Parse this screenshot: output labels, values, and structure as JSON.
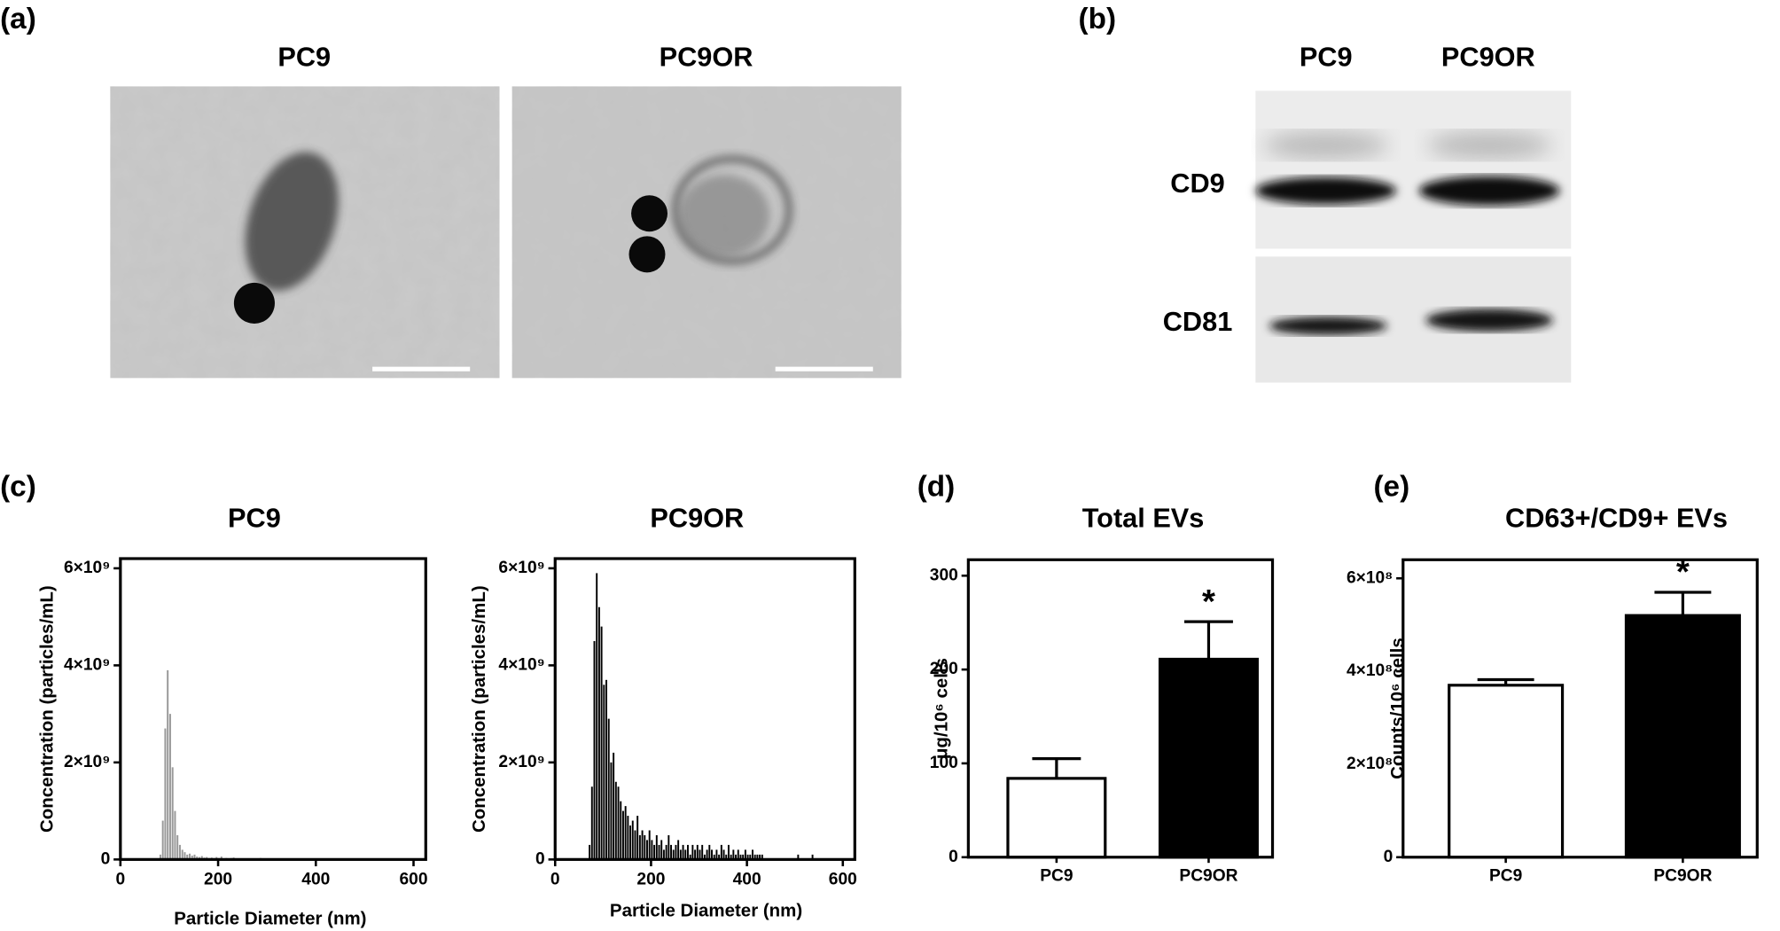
{
  "panels": {
    "a": {
      "label": "(a)",
      "titles": [
        "PC9",
        "PC9OR"
      ]
    },
    "b": {
      "label": "(b)",
      "lanes": [
        "PC9",
        "PC9OR"
      ],
      "markers": [
        "CD9",
        "CD81"
      ]
    }
  },
  "chart_data": [
    {
      "type": "histogram",
      "panel_label": "(c)",
      "title": "PC9",
      "xlabel": "Particle Diameter (nm)",
      "ylabel": "Concentration (particles/mL)",
      "color": "#999999",
      "bins": [
        80,
        85,
        90,
        95,
        100,
        105,
        110,
        115,
        120,
        125,
        130,
        135,
        140,
        145,
        150,
        155,
        160,
        165,
        170,
        175,
        180,
        185,
        190,
        195,
        200,
        205,
        210,
        215,
        220,
        225,
        230,
        235,
        240,
        245,
        250,
        255,
        260,
        265,
        270,
        275,
        280,
        285,
        290,
        295,
        300
      ],
      "values": [
        100000000.0,
        800000000.0,
        2700000000.0,
        3900000000.0,
        3000000000.0,
        1900000000.0,
        1000000000.0,
        500000000.0,
        300000000.0,
        200000000.0,
        150000000.0,
        100000000.0,
        120000000.0,
        80000000.0,
        100000000.0,
        60000000.0,
        50000000.0,
        70000000.0,
        40000000.0,
        50000000.0,
        30000000.0,
        40000000.0,
        30000000.0,
        50000000.0,
        30000000.0,
        60000000.0,
        20000000.0,
        30000000.0,
        20000000.0,
        30000000.0,
        40000000.0,
        10000000.0,
        20000000.0,
        10000000.0,
        20000000.0,
        10000000.0,
        10000000.0,
        20000000.0,
        10000000.0,
        10000000.0,
        20000000.0,
        30000000.0,
        10000000.0,
        10000000.0
      ],
      "xlim": [
        0,
        625
      ],
      "xticks": [
        0,
        200,
        400,
        600
      ],
      "ylim": [
        0,
        6200000000.0
      ],
      "yticks": [
        0,
        {
          "value": 2000000000.0,
          "label": "2×10⁹"
        },
        {
          "value": 4000000000.0,
          "label": "4×10⁹"
        },
        {
          "value": 6000000000.0,
          "label": "6×10⁹"
        }
      ]
    },
    {
      "type": "histogram",
      "title": "PC9OR",
      "xlabel": "Particle Diameter (nm)",
      "ylabel": "Concentration (particles/mL)",
      "color": "#000000",
      "bins": [
        70,
        75,
        80,
        85,
        90,
        95,
        100,
        105,
        110,
        115,
        120,
        125,
        130,
        135,
        140,
        145,
        150,
        155,
        160,
        165,
        170,
        175,
        180,
        185,
        190,
        195,
        200,
        205,
        210,
        215,
        220,
        225,
        230,
        235,
        240,
        245,
        250,
        255,
        260,
        265,
        270,
        275,
        280,
        285,
        290,
        295,
        300,
        305,
        310,
        315,
        320,
        325,
        330,
        335,
        340,
        345,
        350,
        355,
        360,
        365,
        370,
        375,
        380,
        385,
        390,
        395,
        400,
        405,
        410,
        415,
        420,
        425,
        430,
        435,
        440,
        445,
        450,
        455,
        460,
        465,
        470,
        475,
        480,
        485,
        490,
        495,
        500,
        505,
        510,
        515,
        520,
        525,
        530,
        535,
        540,
        545
      ],
      "values": [
        300000000.0,
        1500000000.0,
        4500000000.0,
        5900000000.0,
        5200000000.0,
        4800000000.0,
        3600000000.0,
        3700000000.0,
        2900000000.0,
        2000000000.0,
        2200000000.0,
        1600000000.0,
        1500000000.0,
        1200000000.0,
        1000000000.0,
        1100000000.0,
        900000000.0,
        700000000.0,
        800000000.0,
        600000000.0,
        900000000.0,
        500000000.0,
        600000000.0,
        500000000.0,
        400000000.0,
        600000000.0,
        400000000.0,
        300000000.0,
        500000000.0,
        300000000.0,
        400000000.0,
        200000000.0,
        300000000.0,
        500000000.0,
        300000000.0,
        200000000.0,
        300000000.0,
        400000000.0,
        200000000.0,
        300000000.0,
        200000000.0,
        300000000.0,
        100000000.0,
        300000000.0,
        200000000.0,
        300000000.0,
        200000000.0,
        300000000.0,
        100000000.0,
        200000000.0,
        300000000.0,
        200000000.0,
        100000000.0,
        200000000.0,
        100000000.0,
        300000000.0,
        200000000.0,
        100000000.0,
        300000000.0,
        100000000.0,
        200000000.0,
        100000000.0,
        200000000.0,
        100000000.0,
        100000000.0,
        200000000.0,
        100000000.0,
        100000000.0,
        200000000.0,
        100000000.0,
        100000000.0,
        100000000.0,
        100000000.0,
        0,
        0,
        0,
        0,
        0,
        0,
        0,
        0,
        0,
        0,
        0,
        0,
        0,
        0,
        100000000.0,
        0,
        0,
        0,
        0,
        0,
        100000000.0,
        0
      ],
      "xlim": [
        0,
        625
      ],
      "xticks": [
        0,
        200,
        400,
        600
      ],
      "ylim": [
        0,
        6200000000.0
      ],
      "yticks": [
        0,
        {
          "value": 2000000000.0,
          "label": "2×10⁹"
        },
        {
          "value": 4000000000.0,
          "label": "4×10⁹"
        },
        {
          "value": 6000000000.0,
          "label": "6×10⁹"
        }
      ]
    },
    {
      "type": "bar",
      "panel_label": "(d)",
      "title": "Total EVs",
      "ylabel": "μg/10⁶ cells",
      "categories": [
        "PC9",
        "PC9OR"
      ],
      "values": [
        84,
        211
      ],
      "errors": [
        21,
        40
      ],
      "colors": [
        "#ffffff",
        "#000000"
      ],
      "annotation": "*",
      "ylim": [
        0,
        317
      ],
      "yticks": [
        0,
        100,
        200,
        300
      ]
    },
    {
      "type": "bar",
      "panel_label": "(e)",
      "title": "CD63+/CD9+ EVs",
      "ylabel": "Counts/10⁶ cells",
      "categories": [
        "PC9",
        "PC9OR"
      ],
      "values": [
        370000000.0,
        520000000.0
      ],
      "errors": [
        12000000.0,
        50000000.0
      ],
      "colors": [
        "#ffffff",
        "#000000"
      ],
      "annotation": "*",
      "ylim": [
        0,
        640000000.0
      ],
      "yticks": [
        0,
        {
          "value": 200000000.0,
          "label": "2×10⁸"
        },
        {
          "value": 400000000.0,
          "label": "4×10⁸"
        },
        {
          "value": 600000000.0,
          "label": "6×10⁸"
        }
      ]
    }
  ]
}
